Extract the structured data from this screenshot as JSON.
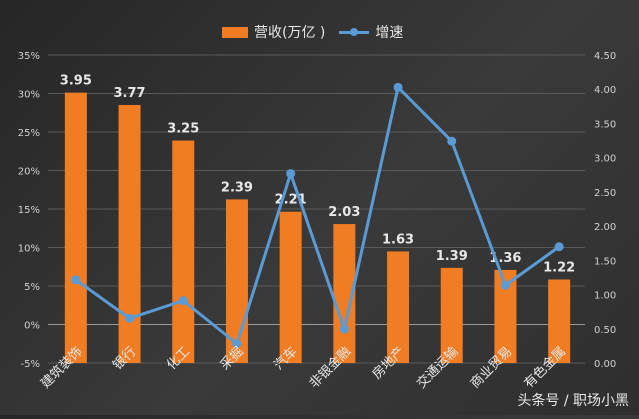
{
  "legend": {
    "bar_label": "营收(万亿 )",
    "line_label": "增速"
  },
  "watermark": "头条号 / 职场小黑",
  "colors": {
    "bar": "#f07c24",
    "line": "#5b9bd5",
    "gridline": "#5a5a5a",
    "axis_text": "#d0d0d0",
    "label_text": "#e8e8e8"
  },
  "chart_data": {
    "type": "bar+line",
    "title": "",
    "categories": [
      "建筑装饰",
      "银行",
      "化工",
      "采掘",
      "汽车",
      "非银金融",
      "房地产",
      "交通运输",
      "商业贸易",
      "有色金属"
    ],
    "series": [
      {
        "name": "营收(万亿 )",
        "type": "bar",
        "axis": "right",
        "values": [
          3.95,
          3.77,
          3.25,
          2.39,
          2.21,
          2.03,
          1.63,
          1.39,
          1.36,
          1.22
        ],
        "data_labels": [
          "3.95",
          "3.77",
          "3.25",
          "2.39",
          "2.21",
          "2.03",
          "1.63",
          "1.39",
          "1.36",
          "1.22"
        ]
      },
      {
        "name": "增速",
        "type": "line",
        "axis": "left",
        "values": [
          5.8,
          0.8,
          3.1,
          -2.5,
          19.6,
          -0.6,
          30.8,
          23.8,
          5.1,
          10.1
        ],
        "unit": "%"
      }
    ],
    "left_axis": {
      "ticks": [
        "35%",
        "30%",
        "25%",
        "20%",
        "15%",
        "10%",
        "5%",
        "0%",
        "-5%"
      ],
      "range": [
        -5,
        35
      ]
    },
    "right_axis": {
      "ticks": [
        "4.50",
        "4.00",
        "3.50",
        "3.00",
        "2.50",
        "2.00",
        "1.50",
        "1.00",
        "0.50",
        "0.00"
      ],
      "range": [
        0,
        4.5
      ]
    },
    "grid": true,
    "legend_position": "top"
  }
}
